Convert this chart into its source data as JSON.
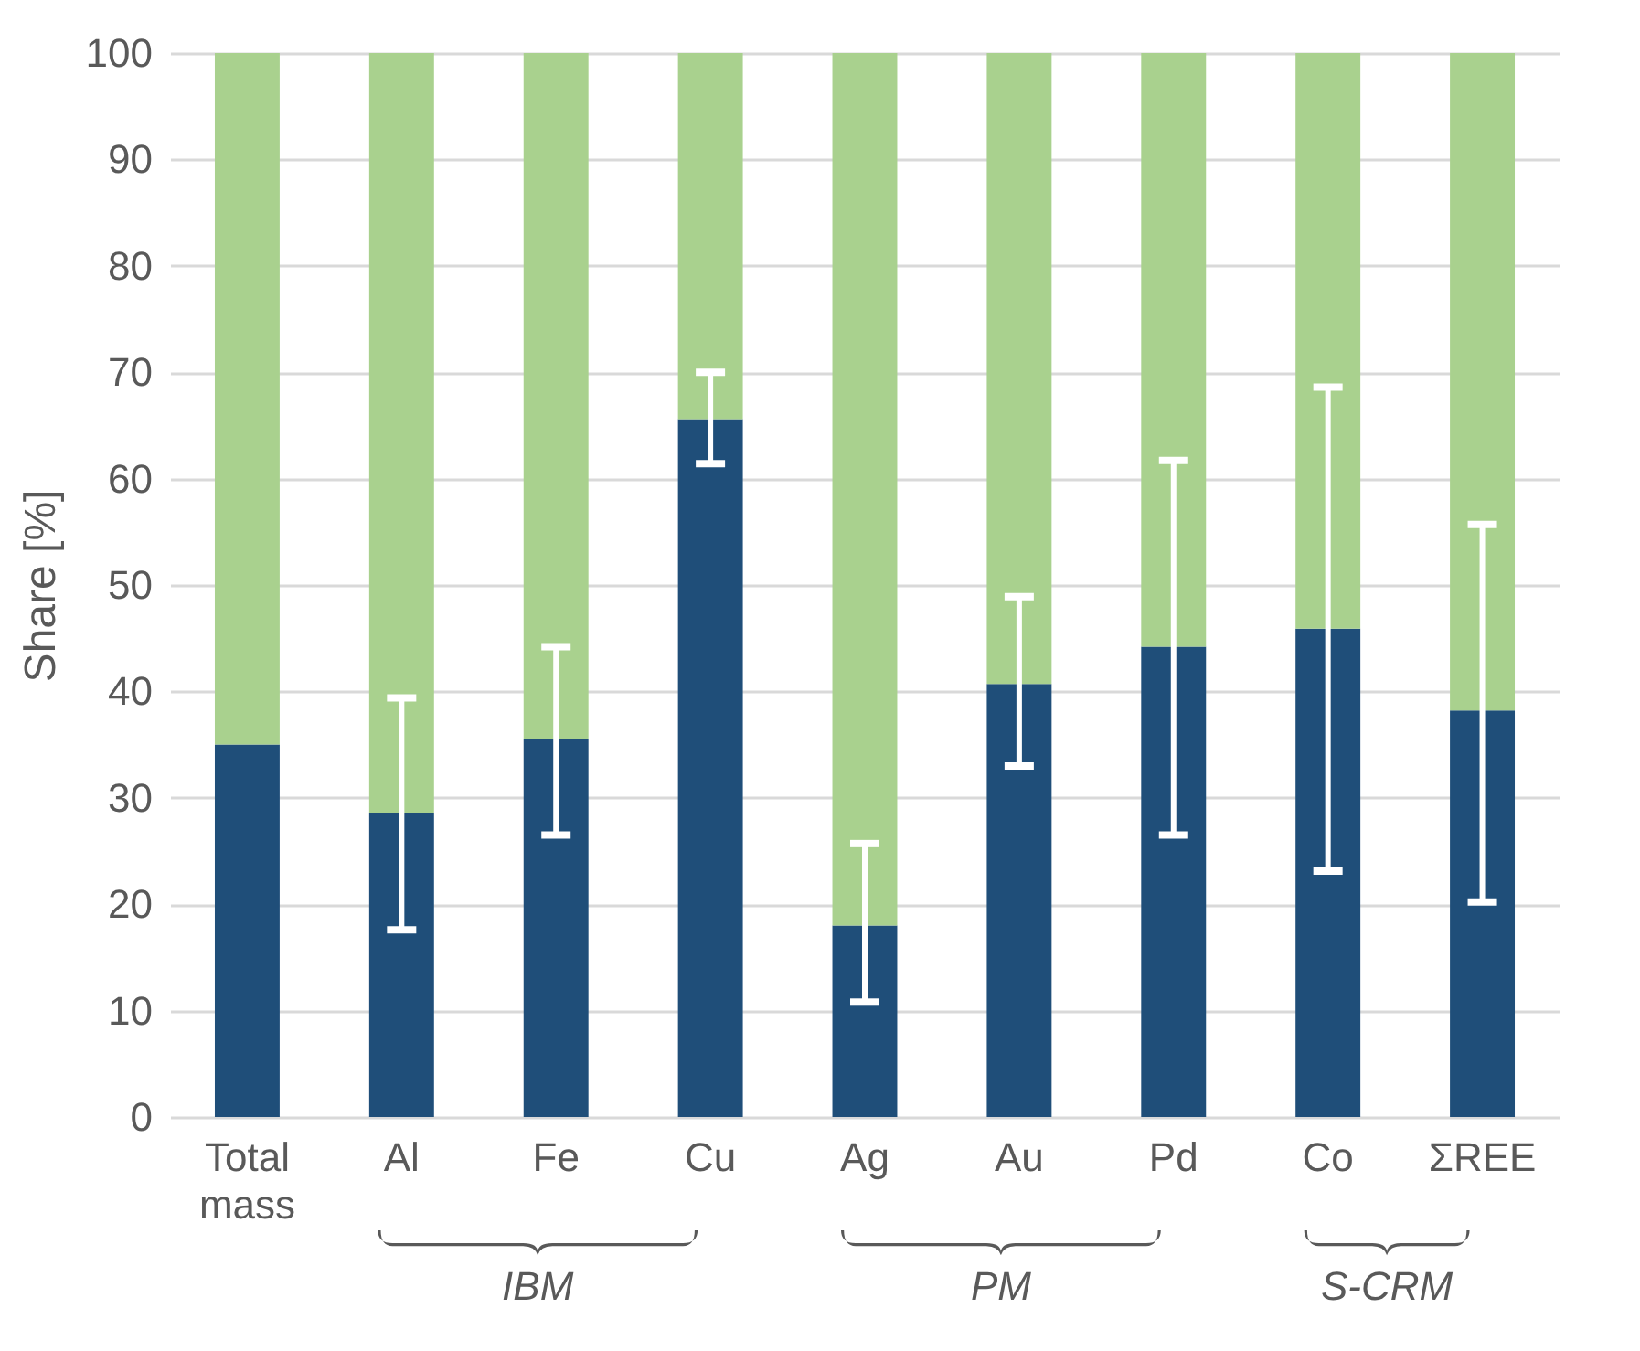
{
  "chart_data": {
    "type": "bar",
    "stacked": true,
    "ylabel": "Share [%]",
    "categories": [
      "Total mass",
      "Al",
      "Fe",
      "Cu",
      "Ag",
      "Au",
      "Pd",
      "Co",
      "ΣREE"
    ],
    "series": [
      {
        "color": "#1f4e79",
        "values": [
          35.0,
          28.6,
          35.5,
          65.6,
          18.0,
          40.7,
          44.2,
          45.9,
          38.2
        ],
        "errors": [
          null,
          [
            17.6,
            39.4
          ],
          [
            26.5,
            44.2
          ],
          [
            61.4,
            70.0
          ],
          [
            10.8,
            25.7
          ],
          [
            33.0,
            48.9
          ],
          [
            26.5,
            61.7
          ],
          [
            23.1,
            68.6
          ],
          [
            20.2,
            55.7
          ]
        ]
      },
      {
        "color": "#a9d18e",
        "values": [
          65.0,
          71.4,
          64.5,
          34.4,
          82.0,
          59.3,
          55.8,
          54.1,
          61.8
        ]
      }
    ],
    "ylim": [
      0,
      100
    ],
    "yticks": [
      0,
      10,
      20,
      30,
      40,
      50,
      60,
      70,
      80,
      90,
      100
    ],
    "grid": "y",
    "legend": false,
    "annotations": [
      "IBM",
      "PM",
      "S-CRM"
    ]
  }
}
